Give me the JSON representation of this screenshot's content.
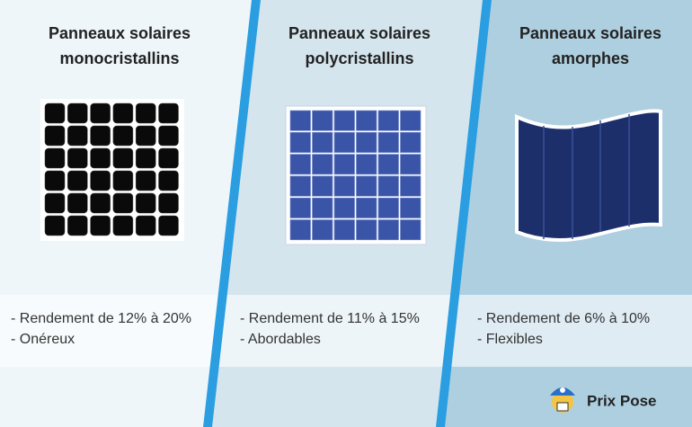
{
  "columns": [
    {
      "title": [
        "Panneaux solaires",
        "monocristallins"
      ],
      "features": [
        "- Rendement de 12% à 20%",
        "- Onéreux"
      ]
    },
    {
      "title": [
        "Panneaux solaires",
        "polycristallins"
      ],
      "features": [
        "- Rendement de 11% à 15%",
        "- Abordables"
      ]
    },
    {
      "title": [
        "Panneaux solaires",
        "amorphes"
      ],
      "features": [
        "- Rendement de 6% à 10%",
        "- Flexibles"
      ]
    }
  ],
  "brand": "Prix Pose"
}
